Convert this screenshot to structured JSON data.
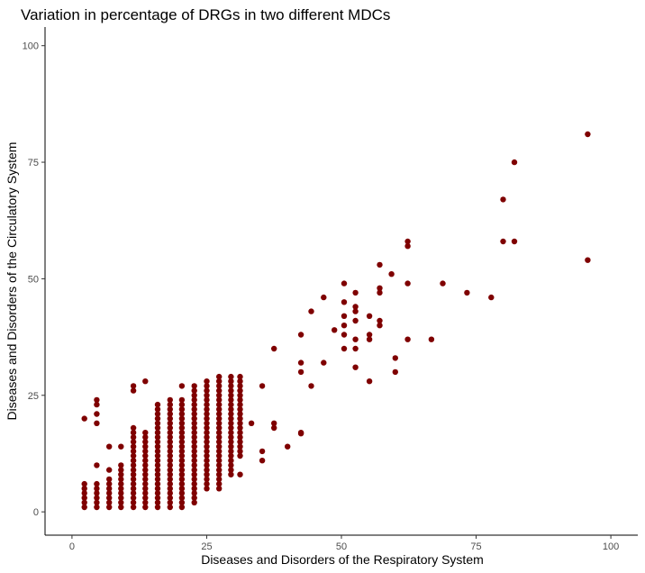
{
  "chart_data": {
    "type": "scatter",
    "title": "Variation in percentage of DRGs in two different MDCs",
    "xlabel": "Diseases and Disorders of the Respiratory System",
    "ylabel": "Diseases and Disorders of the Circulatory System",
    "xlim": [
      -5,
      105
    ],
    "ylim": [
      -5,
      104
    ],
    "xticks": [
      0,
      25,
      50,
      75,
      100
    ],
    "yticks": [
      0,
      25,
      50,
      75,
      100
    ],
    "grid": false,
    "point_color": "#7f0000",
    "points": [
      [
        2.3,
        1
      ],
      [
        2.3,
        2
      ],
      [
        2.3,
        3
      ],
      [
        2.3,
        4
      ],
      [
        2.3,
        5
      ],
      [
        2.3,
        6
      ],
      [
        2.3,
        20
      ],
      [
        4.6,
        1
      ],
      [
        4.6,
        2
      ],
      [
        4.6,
        3
      ],
      [
        4.6,
        4
      ],
      [
        4.6,
        5
      ],
      [
        4.6,
        6
      ],
      [
        4.6,
        10
      ],
      [
        4.6,
        19
      ],
      [
        4.6,
        21
      ],
      [
        4.6,
        23
      ],
      [
        4.6,
        24
      ],
      [
        6.9,
        1
      ],
      [
        6.9,
        2
      ],
      [
        6.9,
        3
      ],
      [
        6.9,
        4
      ],
      [
        6.9,
        5
      ],
      [
        6.9,
        6
      ],
      [
        6.9,
        7
      ],
      [
        6.9,
        9
      ],
      [
        6.9,
        14
      ],
      [
        9.1,
        1
      ],
      [
        9.1,
        2
      ],
      [
        9.1,
        3
      ],
      [
        9.1,
        4
      ],
      [
        9.1,
        5
      ],
      [
        9.1,
        6
      ],
      [
        9.1,
        7
      ],
      [
        9.1,
        8
      ],
      [
        9.1,
        9
      ],
      [
        9.1,
        10
      ],
      [
        9.1,
        14
      ],
      [
        11.4,
        1
      ],
      [
        11.4,
        2
      ],
      [
        11.4,
        3
      ],
      [
        11.4,
        4
      ],
      [
        11.4,
        5
      ],
      [
        11.4,
        6
      ],
      [
        11.4,
        7
      ],
      [
        11.4,
        8
      ],
      [
        11.4,
        9
      ],
      [
        11.4,
        10
      ],
      [
        11.4,
        11
      ],
      [
        11.4,
        12
      ],
      [
        11.4,
        13
      ],
      [
        11.4,
        14
      ],
      [
        11.4,
        15
      ],
      [
        11.4,
        16
      ],
      [
        11.4,
        17
      ],
      [
        11.4,
        18
      ],
      [
        11.4,
        26
      ],
      [
        11.4,
        27
      ],
      [
        13.6,
        1
      ],
      [
        13.6,
        2
      ],
      [
        13.6,
        3
      ],
      [
        13.6,
        4
      ],
      [
        13.6,
        5
      ],
      [
        13.6,
        6
      ],
      [
        13.6,
        7
      ],
      [
        13.6,
        8
      ],
      [
        13.6,
        9
      ],
      [
        13.6,
        10
      ],
      [
        13.6,
        11
      ],
      [
        13.6,
        12
      ],
      [
        13.6,
        13
      ],
      [
        13.6,
        14
      ],
      [
        13.6,
        15
      ],
      [
        13.6,
        16
      ],
      [
        13.6,
        17
      ],
      [
        13.6,
        28
      ],
      [
        15.9,
        1
      ],
      [
        15.9,
        2
      ],
      [
        15.9,
        3
      ],
      [
        15.9,
        4
      ],
      [
        15.9,
        5
      ],
      [
        15.9,
        6
      ],
      [
        15.9,
        7
      ],
      [
        15.9,
        8
      ],
      [
        15.9,
        9
      ],
      [
        15.9,
        10
      ],
      [
        15.9,
        11
      ],
      [
        15.9,
        12
      ],
      [
        15.9,
        13
      ],
      [
        15.9,
        14
      ],
      [
        15.9,
        15
      ],
      [
        15.9,
        16
      ],
      [
        15.9,
        17
      ],
      [
        15.9,
        18
      ],
      [
        15.9,
        19
      ],
      [
        15.9,
        20
      ],
      [
        15.9,
        21
      ],
      [
        15.9,
        22
      ],
      [
        15.9,
        23
      ],
      [
        18.2,
        1
      ],
      [
        18.2,
        2
      ],
      [
        18.2,
        3
      ],
      [
        18.2,
        4
      ],
      [
        18.2,
        5
      ],
      [
        18.2,
        6
      ],
      [
        18.2,
        7
      ],
      [
        18.2,
        8
      ],
      [
        18.2,
        9
      ],
      [
        18.2,
        10
      ],
      [
        18.2,
        11
      ],
      [
        18.2,
        12
      ],
      [
        18.2,
        13
      ],
      [
        18.2,
        14
      ],
      [
        18.2,
        15
      ],
      [
        18.2,
        16
      ],
      [
        18.2,
        17
      ],
      [
        18.2,
        18
      ],
      [
        18.2,
        19
      ],
      [
        18.2,
        20
      ],
      [
        18.2,
        21
      ],
      [
        18.2,
        22
      ],
      [
        18.2,
        23
      ],
      [
        18.2,
        24
      ],
      [
        20.4,
        1
      ],
      [
        20.4,
        2
      ],
      [
        20.4,
        3
      ],
      [
        20.4,
        4
      ],
      [
        20.4,
        5
      ],
      [
        20.4,
        6
      ],
      [
        20.4,
        7
      ],
      [
        20.4,
        8
      ],
      [
        20.4,
        9
      ],
      [
        20.4,
        10
      ],
      [
        20.4,
        11
      ],
      [
        20.4,
        12
      ],
      [
        20.4,
        13
      ],
      [
        20.4,
        14
      ],
      [
        20.4,
        15
      ],
      [
        20.4,
        16
      ],
      [
        20.4,
        17
      ],
      [
        20.4,
        18
      ],
      [
        20.4,
        19
      ],
      [
        20.4,
        20
      ],
      [
        20.4,
        21
      ],
      [
        20.4,
        22
      ],
      [
        20.4,
        23
      ],
      [
        20.4,
        24
      ],
      [
        20.4,
        27
      ],
      [
        22.7,
        2
      ],
      [
        22.7,
        3
      ],
      [
        22.7,
        4
      ],
      [
        22.7,
        5
      ],
      [
        22.7,
        6
      ],
      [
        22.7,
        7
      ],
      [
        22.7,
        8
      ],
      [
        22.7,
        9
      ],
      [
        22.7,
        10
      ],
      [
        22.7,
        11
      ],
      [
        22.7,
        12
      ],
      [
        22.7,
        13
      ],
      [
        22.7,
        14
      ],
      [
        22.7,
        15
      ],
      [
        22.7,
        16
      ],
      [
        22.7,
        17
      ],
      [
        22.7,
        18
      ],
      [
        22.7,
        19
      ],
      [
        22.7,
        20
      ],
      [
        22.7,
        21
      ],
      [
        22.7,
        22
      ],
      [
        22.7,
        23
      ],
      [
        22.7,
        24
      ],
      [
        22.7,
        25
      ],
      [
        22.7,
        26
      ],
      [
        22.7,
        27
      ],
      [
        25,
        5
      ],
      [
        25,
        6
      ],
      [
        25,
        7
      ],
      [
        25,
        8
      ],
      [
        25,
        9
      ],
      [
        25,
        10
      ],
      [
        25,
        11
      ],
      [
        25,
        12
      ],
      [
        25,
        13
      ],
      [
        25,
        14
      ],
      [
        25,
        15
      ],
      [
        25,
        16
      ],
      [
        25,
        17
      ],
      [
        25,
        18
      ],
      [
        25,
        19
      ],
      [
        25,
        20
      ],
      [
        25,
        21
      ],
      [
        25,
        22
      ],
      [
        25,
        23
      ],
      [
        25,
        24
      ],
      [
        25,
        25
      ],
      [
        25,
        26
      ],
      [
        25,
        27
      ],
      [
        25,
        28
      ],
      [
        27.3,
        5
      ],
      [
        27.3,
        6
      ],
      [
        27.3,
        7
      ],
      [
        27.3,
        8
      ],
      [
        27.3,
        9
      ],
      [
        27.3,
        10
      ],
      [
        27.3,
        11
      ],
      [
        27.3,
        12
      ],
      [
        27.3,
        13
      ],
      [
        27.3,
        14
      ],
      [
        27.3,
        15
      ],
      [
        27.3,
        16
      ],
      [
        27.3,
        17
      ],
      [
        27.3,
        18
      ],
      [
        27.3,
        19
      ],
      [
        27.3,
        20
      ],
      [
        27.3,
        21
      ],
      [
        27.3,
        22
      ],
      [
        27.3,
        23
      ],
      [
        27.3,
        24
      ],
      [
        27.3,
        25
      ],
      [
        27.3,
        26
      ],
      [
        27.3,
        27
      ],
      [
        27.3,
        28
      ],
      [
        27.3,
        29
      ],
      [
        29.5,
        8
      ],
      [
        29.5,
        9
      ],
      [
        29.5,
        10
      ],
      [
        29.5,
        11
      ],
      [
        29.5,
        12
      ],
      [
        29.5,
        13
      ],
      [
        29.5,
        14
      ],
      [
        29.5,
        15
      ],
      [
        29.5,
        16
      ],
      [
        29.5,
        17
      ],
      [
        29.5,
        18
      ],
      [
        29.5,
        19
      ],
      [
        29.5,
        20
      ],
      [
        29.5,
        21
      ],
      [
        29.5,
        22
      ],
      [
        29.5,
        23
      ],
      [
        29.5,
        24
      ],
      [
        29.5,
        25
      ],
      [
        29.5,
        26
      ],
      [
        29.5,
        27
      ],
      [
        29.5,
        28
      ],
      [
        29.5,
        29
      ],
      [
        31.2,
        8
      ],
      [
        31.2,
        12
      ],
      [
        31.2,
        13
      ],
      [
        31.2,
        14
      ],
      [
        31.2,
        15
      ],
      [
        31.2,
        16
      ],
      [
        31.2,
        17
      ],
      [
        31.2,
        18
      ],
      [
        31.2,
        19
      ],
      [
        31.2,
        20
      ],
      [
        31.2,
        21
      ],
      [
        31.2,
        22
      ],
      [
        31.2,
        23
      ],
      [
        31.2,
        24
      ],
      [
        31.2,
        25
      ],
      [
        31.2,
        26
      ],
      [
        31.2,
        27
      ],
      [
        31.2,
        28
      ],
      [
        31.2,
        29
      ],
      [
        33.3,
        19
      ],
      [
        35.3,
        27
      ],
      [
        35.3,
        13
      ],
      [
        35.3,
        11
      ],
      [
        37.5,
        35
      ],
      [
        37.5,
        19
      ],
      [
        37.5,
        18
      ],
      [
        40,
        14
      ],
      [
        42.5,
        38
      ],
      [
        42.5,
        32
      ],
      [
        42.5,
        30
      ],
      [
        42.5,
        17
      ],
      [
        42.5,
        16.8
      ],
      [
        44.4,
        43
      ],
      [
        44.4,
        27
      ],
      [
        46.7,
        46
      ],
      [
        46.7,
        32
      ],
      [
        48.7,
        39
      ],
      [
        50.5,
        49
      ],
      [
        50.5,
        45
      ],
      [
        50.5,
        42
      ],
      [
        50.5,
        40
      ],
      [
        50.5,
        38
      ],
      [
        50.5,
        35
      ],
      [
        52.6,
        47
      ],
      [
        52.6,
        44
      ],
      [
        52.6,
        43
      ],
      [
        52.6,
        41
      ],
      [
        52.6,
        37
      ],
      [
        52.6,
        35
      ],
      [
        52.6,
        31
      ],
      [
        55.2,
        42
      ],
      [
        55.2,
        38
      ],
      [
        55.2,
        37
      ],
      [
        55.2,
        28
      ],
      [
        57.1,
        53
      ],
      [
        57.1,
        48
      ],
      [
        57.1,
        47
      ],
      [
        57.1,
        41
      ],
      [
        57.1,
        40
      ],
      [
        59.3,
        51
      ],
      [
        60,
        33
      ],
      [
        60,
        30
      ],
      [
        62.3,
        58
      ],
      [
        62.3,
        57
      ],
      [
        62.3,
        49
      ],
      [
        62.3,
        37
      ],
      [
        66.7,
        37
      ],
      [
        68.8,
        49
      ],
      [
        73.3,
        47
      ],
      [
        77.8,
        46
      ],
      [
        80,
        67
      ],
      [
        80,
        58
      ],
      [
        82.1,
        75
      ],
      [
        82.1,
        58
      ],
      [
        95.7,
        81
      ],
      [
        95.7,
        54
      ]
    ]
  }
}
